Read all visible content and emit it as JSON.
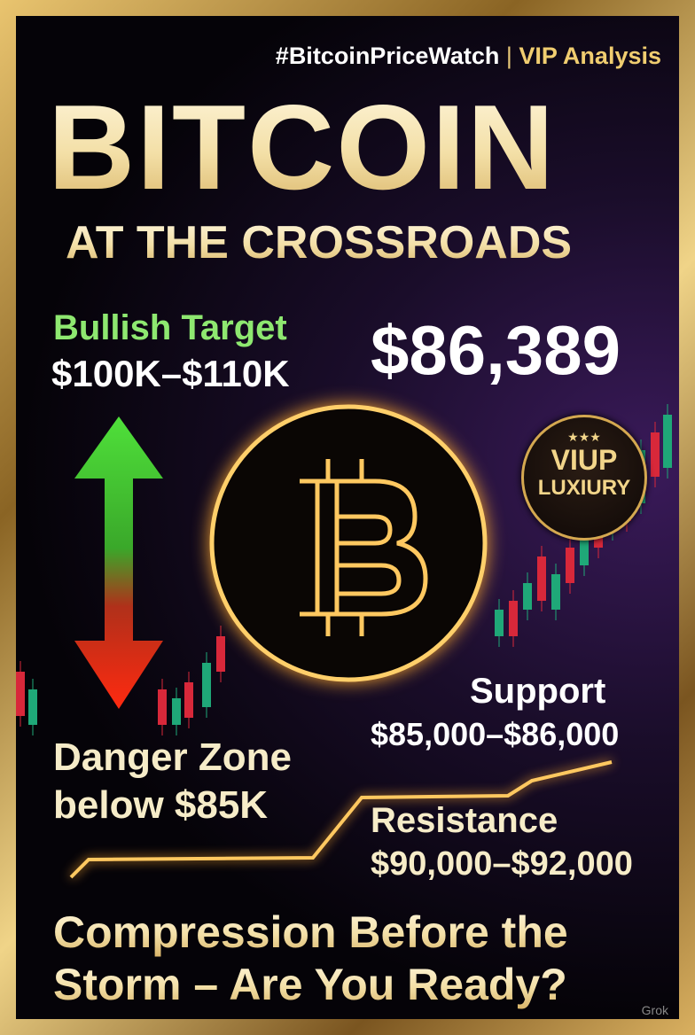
{
  "header": {
    "hashtag": "#BitcoinPriceWatch",
    "separator": "|",
    "tag": "VIP Analysis"
  },
  "title": {
    "main": "BITCOIN",
    "sub": "AT THE CROSSROADS"
  },
  "bullish": {
    "label": "Bullish Target",
    "range": "$100K–$110K"
  },
  "price": "$86,389",
  "badge": {
    "line1": "VIUP",
    "line2": "LUXIURY",
    "stars": "★★★"
  },
  "support": {
    "label": "Support",
    "range": "$85,000–$86,000"
  },
  "danger": {
    "line1": "Danger Zone",
    "line2": "below $85K"
  },
  "resistance": {
    "label": "Resistance",
    "range": "$90,000–$92,000"
  },
  "footer": {
    "line1": "Compression Before the",
    "line2": "Storm – Are You Ready?"
  },
  "watermark": "Grok",
  "colors": {
    "gold": "#f0d488",
    "green": "#6fe06a",
    "red": "#e0341c",
    "bg": "#050308"
  },
  "icons": {
    "coin": "bitcoin-icon",
    "arrow": "up-down-arrow-icon"
  }
}
